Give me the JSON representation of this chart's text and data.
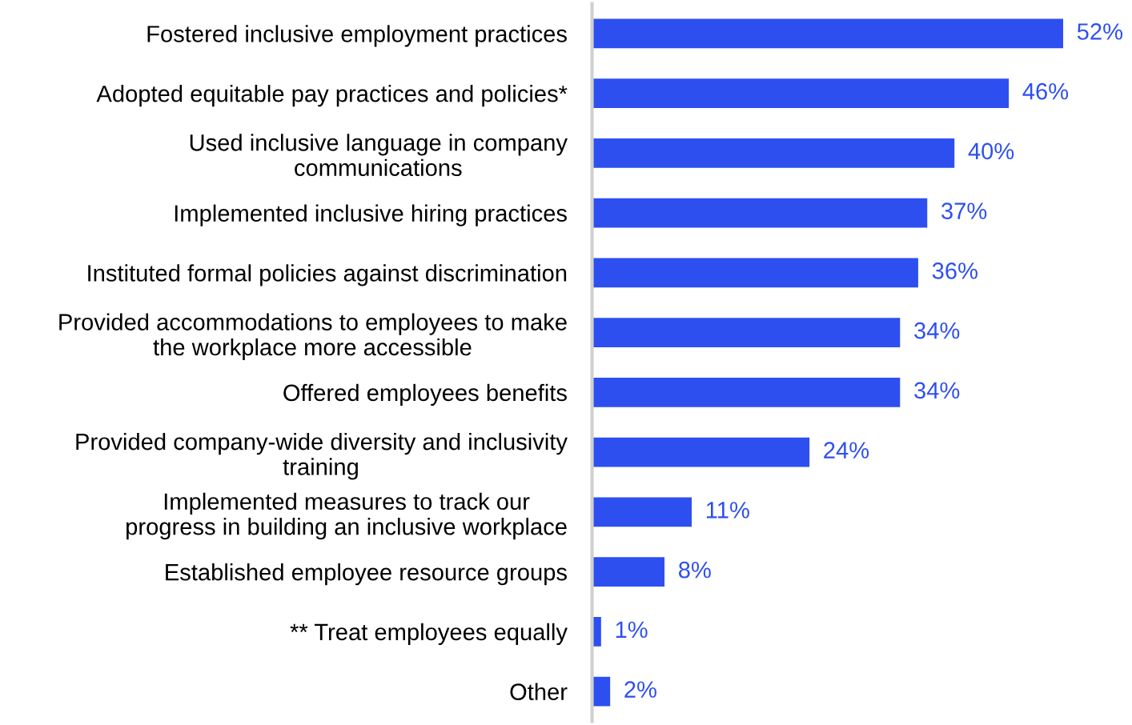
{
  "chart_data": {
    "type": "bar",
    "orientation": "horizontal",
    "categories": [
      "Fostered inclusive employment practices",
      "Adopted equitable pay practices and policies*",
      "Used inclusive language in company\ncommunications",
      "Implemented inclusive hiring practices",
      "Instituted formal policies against discrimination",
      "Provided accommodations to employees to make\nthe workplace more accessible",
      "Offered employees benefits",
      "Provided company-wide diversity and inclusivity\ntraining",
      "Implemented measures to track our\nprogress in building an inclusive workplace",
      "Established employee resource groups",
      "** Treat employees equally",
      "Other"
    ],
    "values": [
      52,
      46,
      40,
      37,
      36,
      34,
      34,
      24,
      11,
      8,
      1,
      2
    ],
    "value_labels": [
      "52%",
      "46%",
      "40%",
      "37%",
      "36%",
      "34%",
      "34%",
      "24%",
      "11%",
      "8%",
      "1%",
      "2%"
    ],
    "color": "#2d4ff0",
    "tick_labels": "y"
  }
}
